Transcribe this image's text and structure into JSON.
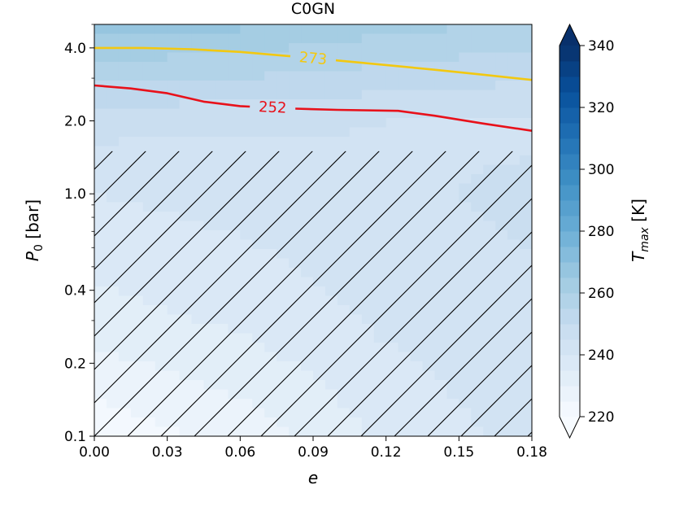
{
  "chart_data": {
    "type": "heatmap",
    "title": "C0GN",
    "xlabel": "e",
    "ylabel_main": "P",
    "ylabel_sub": "0",
    "ylabel_unit": " [bar]",
    "x_ticks": [
      "0.00",
      "0.03",
      "0.06",
      "0.09",
      "0.12",
      "0.15",
      "0.18"
    ],
    "x_tick_values": [
      0.0,
      0.03,
      0.06,
      0.09,
      0.12,
      0.15,
      0.18
    ],
    "xlim": [
      0.0,
      0.18
    ],
    "y_scale": "log",
    "ylim": [
      0.1,
      5.0
    ],
    "y_ticks": [
      "0.1",
      "0.2",
      "0.4",
      "1.0",
      "2.0",
      "4.0"
    ],
    "y_tick_values": [
      0.1,
      0.2,
      0.4,
      1.0,
      2.0,
      4.0
    ],
    "colorbar": {
      "label_main": "T",
      "label_sub": "max",
      "label_unit": " [K]",
      "ticks": [
        "220",
        "240",
        "260",
        "280",
        "300",
        "320",
        "340"
      ],
      "tick_values": [
        220,
        240,
        260,
        280,
        300,
        320,
        340
      ],
      "range": [
        220,
        340
      ],
      "extend": "both",
      "colormap": "Blues"
    },
    "field_anchors": {
      "e": [
        0.0,
        0.06,
        0.12,
        0.18
      ],
      "P0": [
        0.1,
        0.3,
        1.0,
        2.0,
        5.0
      ],
      "T_max": [
        [
          221,
          227,
          236,
          242
        ],
        [
          233,
          236,
          241,
          244
        ],
        [
          240,
          242,
          244,
          246
        ],
        [
          247,
          246,
          245,
          244
        ],
        [
          268,
          266,
          262,
          259
        ]
      ]
    },
    "contours": [
      {
        "label": "273",
        "color": "#f2c811",
        "e": [
          0.0,
          0.02,
          0.04,
          0.06,
          0.08,
          0.1,
          0.12,
          0.14,
          0.16,
          0.18
        ],
        "P0": [
          4.0,
          4.0,
          3.95,
          3.85,
          3.7,
          3.55,
          3.4,
          3.25,
          3.1,
          2.95
        ]
      },
      {
        "label": "252",
        "color": "#e8111a",
        "e": [
          0.0,
          0.015,
          0.03,
          0.045,
          0.06,
          0.08,
          0.1,
          0.125,
          0.14,
          0.16,
          0.18
        ],
        "P0": [
          2.8,
          2.72,
          2.6,
          2.4,
          2.3,
          2.25,
          2.22,
          2.2,
          2.1,
          1.95,
          1.82
        ]
      }
    ],
    "hatch_region": {
      "e": [
        0.0,
        0.18
      ],
      "P0": [
        0.1,
        1.5
      ],
      "pattern": "forward-diagonal"
    }
  }
}
